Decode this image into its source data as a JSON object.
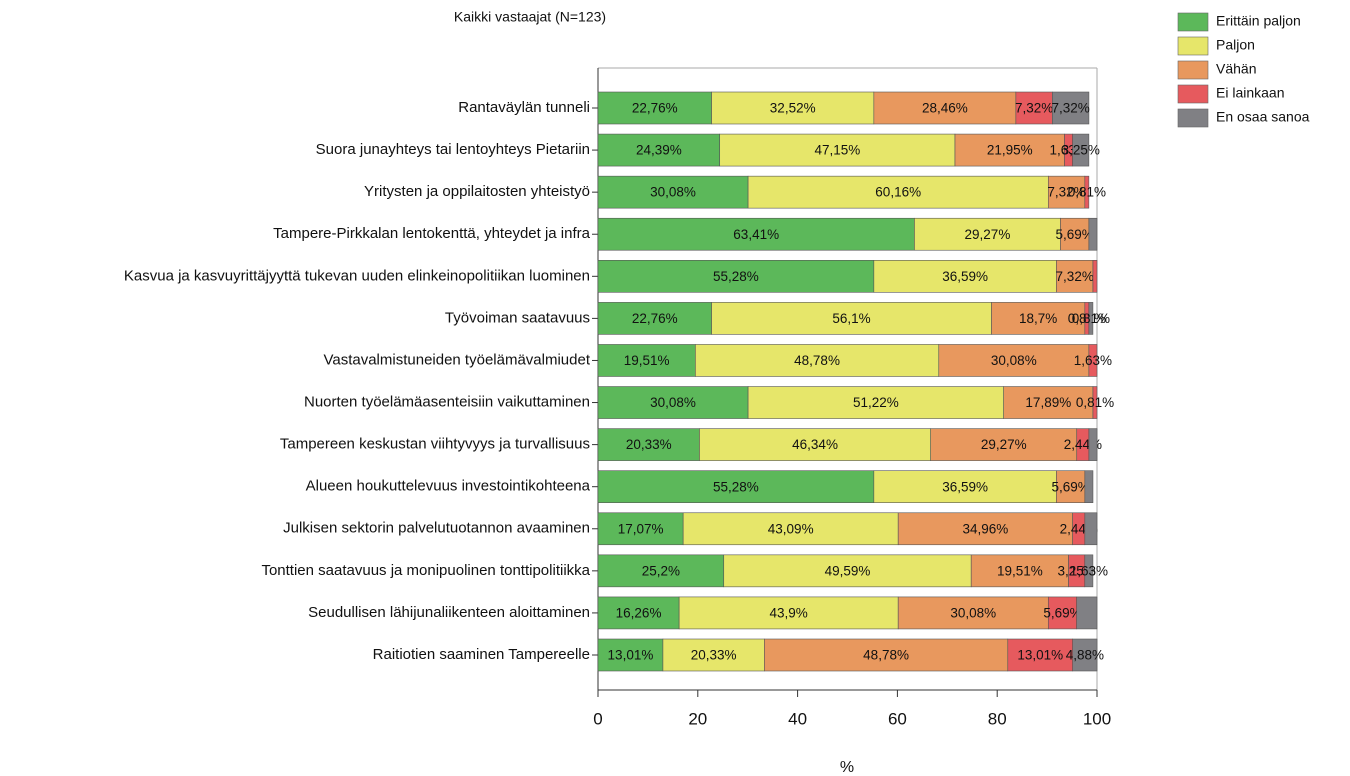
{
  "chart_data": {
    "type": "stacked_bar_horizontal",
    "title": "Kaikki vastaajat (N=123)",
    "x_label": "%",
    "categories": [
      "Rantaväylän tunneli",
      "Suora junayhteys tai lentoyhteys Pietariin",
      "Yritysten ja oppilaitosten yhteistyö",
      "Tampere-Pirkkalan lentokenttä, yhteydet ja infra",
      "Kasvua ja kasvuyrittäjyyttä tukevan uuden elinkeinopolitiikan luominen",
      "Työvoiman saatavuus",
      "Vastavalmistuneiden työelämävalmiudet",
      "Nuorten työelämäasenteisiin vaikuttaminen",
      "Tampereen keskustan viihtyvyys ja turvallisuus",
      "Alueen houkuttelevuus investointikohteena",
      "Julkisen sektorin palvelutuotannon avaaminen",
      "Tonttien saatavuus ja monipuolinen tonttipolitiikka",
      "Seudullisen lähijunaliikenteen aloittaminen",
      "Raitiotien saaminen Tampereelle"
    ],
    "series": [
      {
        "name": "Erittäin paljon",
        "color": "#5cb85a",
        "values": [
          22.76,
          24.39,
          30.08,
          63.41,
          55.28,
          22.76,
          19.51,
          30.08,
          20.33,
          55.28,
          17.07,
          25.2,
          16.26,
          13.01
        ],
        "value_labels": [
          "22,76%",
          "24,39%",
          "30,08%",
          "63,41%",
          "55,28%",
          "22,76%",
          "19,51%",
          "30,08%",
          "20,33%",
          "55,28%",
          "17,07%",
          "25,2%",
          "16,26%",
          "13,01%"
        ]
      },
      {
        "name": "Paljon",
        "color": "#e6e66a",
        "values": [
          32.52,
          47.15,
          60.16,
          29.27,
          36.59,
          56.1,
          48.78,
          51.22,
          46.34,
          36.59,
          43.09,
          49.59,
          43.9,
          20.33
        ],
        "value_labels": [
          "32,52%",
          "47,15%",
          "60,16%",
          "29,27%",
          "36,59%",
          "56,1%",
          "48,78%",
          "51,22%",
          "46,34%",
          "36,59%",
          "43,09%",
          "49,59%",
          "43,9%",
          "20,33%"
        ]
      },
      {
        "name": "Vähän",
        "color": "#e8985e",
        "values": [
          28.46,
          21.95,
          7.32,
          5.69,
          7.32,
          18.7,
          30.08,
          17.89,
          29.27,
          5.69,
          34.96,
          19.51,
          30.08,
          48.78
        ],
        "value_labels": [
          "28,46%",
          "21,95%",
          "7,32%",
          "5,69%",
          "7,32%",
          "18,7%",
          "30,08%",
          "17,89%",
          "29,27%",
          "5,69%",
          "34,96%",
          "19,51%",
          "30,08%",
          "48,78%"
        ]
      },
      {
        "name": "Ei lainkaan",
        "color": "#e65a5e",
        "values": [
          7.32,
          1.63,
          0.81,
          0,
          0.81,
          0.81,
          1.63,
          0.81,
          2.44,
          0,
          2.44,
          3.25,
          5.69,
          13.01
        ],
        "value_labels": [
          "7,32%",
          "1,63%",
          "0,81%",
          null,
          null,
          "0,81%",
          "1,63%",
          "0,81%",
          "2,44%",
          null,
          "2,44%",
          "3,25%",
          "5,69%",
          "13,01%"
        ]
      },
      {
        "name": "En osaa sanoa",
        "color": "#808084",
        "values": [
          7.32,
          3.25,
          0,
          1.63,
          0,
          0.81,
          0,
          0,
          1.63,
          1.63,
          2.44,
          1.63,
          4.07,
          4.88
        ],
        "value_labels": [
          "7,32%",
          "3,25%",
          null,
          null,
          null,
          "0,81%",
          null,
          null,
          null,
          null,
          null,
          "1,63%",
          null,
          "4,88%"
        ]
      }
    ],
    "xlim": [
      0,
      100
    ],
    "xticks": [
      0,
      20,
      40,
      60,
      80,
      100
    ],
    "legend": "top-right"
  }
}
